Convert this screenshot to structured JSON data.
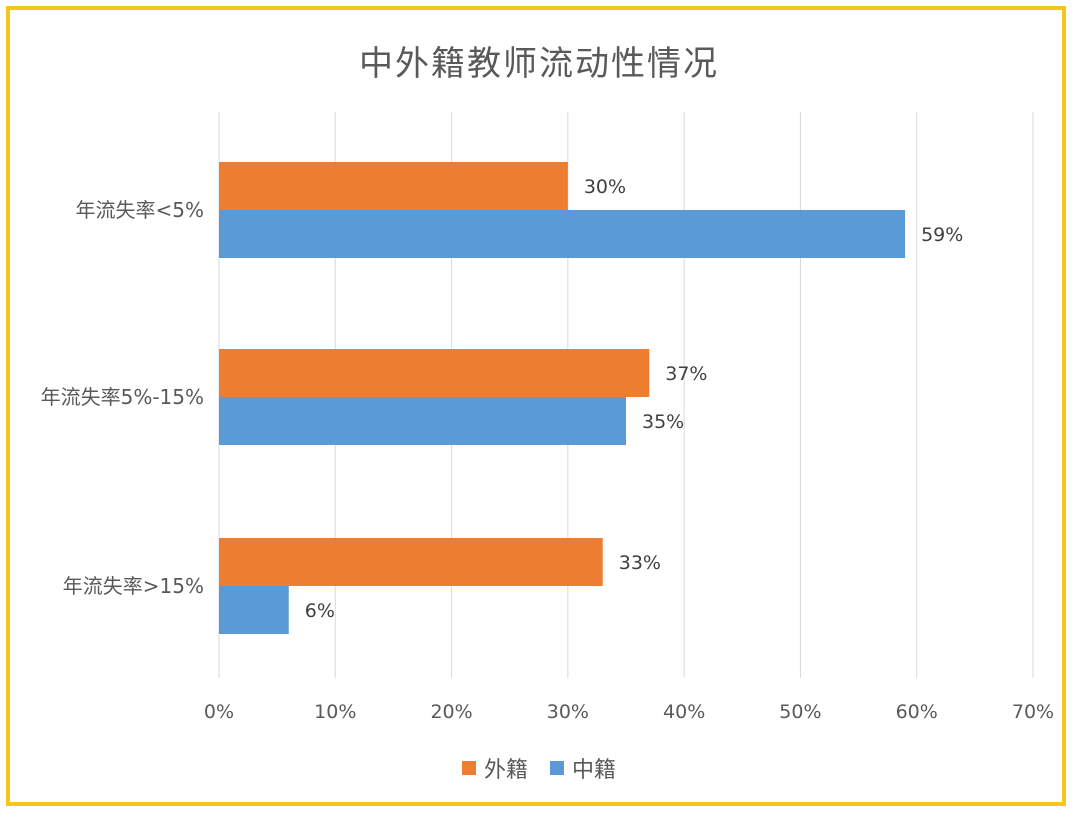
{
  "chart_data": {
    "type": "bar",
    "orientation": "horizontal",
    "title": "中外籍教师流动性情况",
    "categories": [
      "年流失率<5%",
      "年流失率5%-15%",
      "年流失率>15%"
    ],
    "series": [
      {
        "name": "外籍",
        "color": "#ed7d31",
        "values": [
          30,
          37,
          33
        ],
        "labels": [
          "30%",
          "37%",
          "33%"
        ]
      },
      {
        "name": "中籍",
        "color": "#5b9bd5",
        "values": [
          59,
          35,
          6
        ],
        "labels": [
          "59%",
          "35%",
          "6%"
        ]
      }
    ],
    "xlim": [
      0,
      70
    ],
    "xticks": [
      0,
      10,
      20,
      30,
      40,
      50,
      60,
      70
    ],
    "xtick_labels": [
      "0%",
      "10%",
      "20%",
      "30%",
      "40%",
      "50%",
      "60%",
      "70%"
    ],
    "grid": true,
    "legend_position": "bottom"
  }
}
